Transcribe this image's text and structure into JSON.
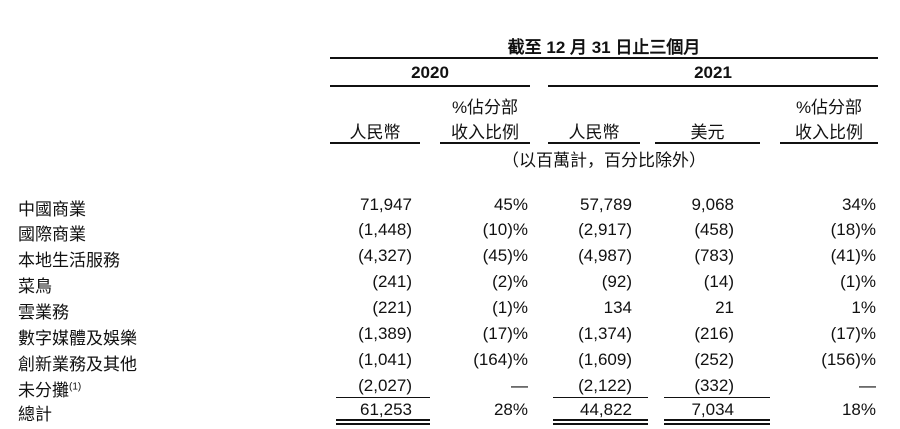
{
  "header": {
    "period": "截至 12 月 31 日止三個月",
    "year_2020": "2020",
    "year_2021": "2021",
    "col_rmb_2020": "人民幣",
    "col_pct_2020_line1": "%佔分部",
    "col_pct_2020_line2": "收入比例",
    "col_rmb_2021": "人民幣",
    "col_usd_2021": "美元",
    "col_pct_2021_line1": "%佔分部",
    "col_pct_2021_line2": "收入比例",
    "unit_note": "（以百萬計，百分比除外）"
  },
  "rows": [
    {
      "label": "中國商業",
      "sup": "",
      "rmb2020": "71,947",
      "pct2020": "45%",
      "rmb2021": "57,789",
      "usd2021": "9,068",
      "pct2021": "34%"
    },
    {
      "label": "國際商業",
      "sup": "",
      "rmb2020": "(1,448)",
      "pct2020": "(10)%",
      "rmb2021": "(2,917)",
      "usd2021": "(458)",
      "pct2021": "(18)%"
    },
    {
      "label": "本地生活服務",
      "sup": "",
      "rmb2020": "(4,327)",
      "pct2020": "(45)%",
      "rmb2021": "(4,987)",
      "usd2021": "(783)",
      "pct2021": "(41)%"
    },
    {
      "label": "菜鳥",
      "sup": "",
      "rmb2020": "(241)",
      "pct2020": "(2)%",
      "rmb2021": "(92)",
      "usd2021": "(14)",
      "pct2021": "(1)%"
    },
    {
      "label": "雲業務",
      "sup": "",
      "rmb2020": "(221)",
      "pct2020": "(1)%",
      "rmb2021": "134",
      "usd2021": "21",
      "pct2021": "1%"
    },
    {
      "label": "數字媒體及娛樂",
      "sup": "",
      "rmb2020": "(1,389)",
      "pct2020": "(17)%",
      "rmb2021": "(1,374)",
      "usd2021": "(216)",
      "pct2021": "(17)%"
    },
    {
      "label": "創新業務及其他",
      "sup": "",
      "rmb2020": "(1,041)",
      "pct2020": "(164)%",
      "rmb2021": "(1,609)",
      "usd2021": "(252)",
      "pct2021": "(156)%"
    },
    {
      "label": "未分攤",
      "sup": "(1)",
      "rmb2020": "(2,027)",
      "pct2020": "—",
      "rmb2021": "(2,122)",
      "usd2021": "(332)",
      "pct2021": "—"
    },
    {
      "label": "總計",
      "sup": "",
      "rmb2020": "61,253",
      "pct2020": "28%",
      "rmb2021": "44,822",
      "usd2021": "7,034",
      "pct2021": "18%"
    }
  ]
}
